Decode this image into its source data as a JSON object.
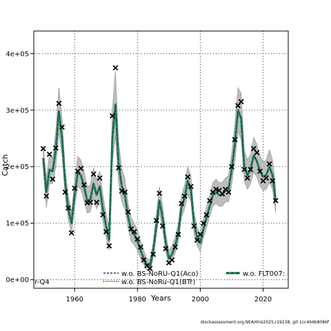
{
  "chart_data": {
    "type": "line",
    "title": "",
    "xlabel": "Years",
    "ylabel": "Catch",
    "xlim": [
      1947,
      2028
    ],
    "ylim": [
      -15000,
      440000
    ],
    "grid": true,
    "x_ticks": [
      1960,
      1980,
      2000,
      2020
    ],
    "x_tick_labels": [
      "1960",
      "1980",
      "2000",
      "2020"
    ],
    "y_ticks": [
      0,
      100000,
      200000,
      300000,
      400000
    ],
    "y_tick_labels": [
      "0e+00",
      "1e+05",
      "2e+05",
      "3e+05",
      "4e+05"
    ],
    "left_cut_label": "r-Q4",
    "footer": "stockassessment.org,NEAHlrsi2025,r19238, git:1cc464b8086f",
    "colors": {
      "band": "#bdbdbd",
      "band_edge": "#8c8c8c",
      "green": "#2e8b57",
      "dark": "#14503a",
      "blue": "#1f3a93",
      "points": "#000000"
    },
    "legend": [
      {
        "label": "w.o. BS-NoRU-Q1(Aco)",
        "style": "dashed-blue"
      },
      {
        "label": "w.o. BS-NoRu-Q1(BTr)",
        "style": "dotted-dark"
      },
      {
        "label": "w.o. FLT007:",
        "style": "solid-dashed"
      }
    ],
    "years": [
      1950,
      1951,
      1952,
      1953,
      1954,
      1955,
      1956,
      1957,
      1958,
      1959,
      1960,
      1961,
      1962,
      1963,
      1964,
      1965,
      1966,
      1967,
      1968,
      1969,
      1970,
      1971,
      1972,
      1973,
      1974,
      1975,
      1976,
      1977,
      1978,
      1979,
      1980,
      1981,
      1982,
      1983,
      1984,
      1985,
      1986,
      1987,
      1988,
      1989,
      1990,
      1991,
      1992,
      1993,
      1994,
      1995,
      1996,
      1997,
      1998,
      1999,
      2000,
      2001,
      2002,
      2003,
      2004,
      2005,
      2006,
      2007,
      2008,
      2009,
      2010,
      2011,
      2012,
      2013,
      2014,
      2015,
      2016,
      2017,
      2018,
      2019,
      2020,
      2021,
      2022,
      2023,
      2024
    ],
    "observed": [
      232000,
      148000,
      222000,
      178000,
      233000,
      312000,
      270000,
      155000,
      127000,
      83000,
      162000,
      192000,
      197000,
      168000,
      136000,
      137000,
      187000,
      137000,
      180000,
      115000,
      85000,
      60000,
      290000,
      375000,
      198000,
      157000,
      155000,
      120000,
      90000,
      85000,
      72000,
      58000,
      35000,
      25000,
      20000,
      45000,
      105000,
      153000,
      95000,
      55000,
      30000,
      35000,
      58000,
      80000,
      135000,
      148000,
      182000,
      165000,
      95000,
      70000,
      80000,
      100000,
      115000,
      140000,
      155000,
      160000,
      158000,
      152000,
      160000,
      155000,
      200000,
      248000,
      308000,
      315000,
      195000,
      180000,
      195000,
      232000,
      225000,
      192000,
      175000,
      180000,
      205000,
      175000,
      140000
    ],
    "fit": [
      215000,
      155000,
      195000,
      192000,
      230000,
      298000,
      250000,
      170000,
      125000,
      100000,
      150000,
      190000,
      185000,
      165000,
      140000,
      142000,
      170000,
      150000,
      165000,
      125000,
      95000,
      70000,
      250000,
      310000,
      205000,
      165000,
      150000,
      112000,
      88000,
      80000,
      68000,
      52000,
      38000,
      26000,
      25000,
      50000,
      95000,
      140000,
      110000,
      65000,
      38000,
      45000,
      60000,
      82000,
      128000,
      145000,
      175000,
      160000,
      100000,
      75000,
      65000,
      90000,
      110000,
      130000,
      150000,
      155000,
      150000,
      150000,
      158000,
      160000,
      195000,
      240000,
      300000,
      285000,
      200000,
      185000,
      195000,
      220000,
      210000,
      192000,
      182000,
      185000,
      200000,
      185000,
      140000
    ],
    "band_lo": [
      195000,
      128000,
      170000,
      170000,
      200000,
      260000,
      220000,
      148000,
      105000,
      82000,
      128000,
      165000,
      160000,
      140000,
      118000,
      120000,
      145000,
      125000,
      140000,
      102000,
      75000,
      52000,
      205000,
      255000,
      170000,
      138000,
      125000,
      92000,
      68000,
      62000,
      52000,
      38000,
      27000,
      17000,
      16000,
      37000,
      78000,
      118000,
      90000,
      50000,
      27000,
      33000,
      47000,
      66000,
      110000,
      125000,
      150000,
      138000,
      82000,
      60000,
      50000,
      74000,
      92000,
      112000,
      130000,
      135000,
      130000,
      130000,
      138000,
      138000,
      168000,
      210000,
      262000,
      248000,
      175000,
      160000,
      170000,
      190000,
      182000,
      166000,
      158000,
      160000,
      172000,
      160000,
      118000
    ],
    "band_hi": [
      238000,
      180000,
      222000,
      215000,
      262000,
      340000,
      285000,
      195000,
      148000,
      120000,
      175000,
      218000,
      212000,
      192000,
      165000,
      168000,
      198000,
      176000,
      192000,
      150000,
      118000,
      90000,
      300000,
      370000,
      245000,
      196000,
      180000,
      135000,
      110000,
      100000,
      88000,
      68000,
      52000,
      37000,
      36000,
      66000,
      115000,
      165000,
      132000,
      82000,
      52000,
      59000,
      76000,
      100000,
      148000,
      168000,
      200000,
      184000,
      120000,
      92000,
      82000,
      108000,
      130000,
      150000,
      172000,
      178000,
      172000,
      172000,
      180000,
      184000,
      225000,
      275000,
      340000,
      330000,
      228000,
      212000,
      222000,
      252000,
      240000,
      220000,
      208000,
      212000,
      230000,
      212000,
      162000
    ]
  }
}
